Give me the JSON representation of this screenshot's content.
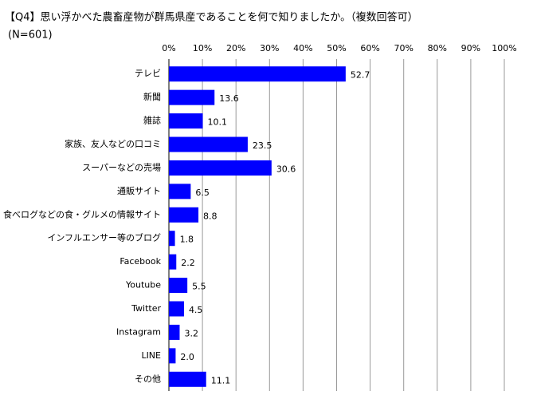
{
  "chart_data": {
    "type": "bar",
    "orientation": "horizontal",
    "title": "【Q4】思い浮かべた農畜産物が群馬県産であることを何で知りましたか。（複数回答可）",
    "subtitle": "(N=601)",
    "categories": [
      "テレビ",
      "新聞",
      "雑誌",
      "家族、友人などの口コミ",
      "スーパーなどの売場",
      "通販サイト",
      "食べログなどの食・グルメの情報サイト",
      "インフルエンサー等のブログ",
      "Facebook",
      "Youtube",
      "Twitter",
      "Instagram",
      "LINE",
      "その他"
    ],
    "values": [
      52.7,
      13.6,
      10.1,
      23.5,
      30.6,
      6.5,
      8.8,
      1.8,
      2.2,
      5.5,
      4.5,
      3.2,
      2.0,
      11.1
    ],
    "value_labels": [
      "52.7",
      "13.6",
      "10.1",
      "23.5",
      "30.6",
      "6.5",
      "8.8",
      "1.8",
      "2.2",
      "5.5",
      "4.5",
      "3.2",
      "2.0",
      "11.1"
    ],
    "color": "#0000ff",
    "xlim": [
      0,
      100
    ],
    "xticks": [
      {
        "value": 0,
        "label": "0%"
      },
      {
        "value": 10,
        "label": "10%"
      },
      {
        "value": 20,
        "label": "20%"
      },
      {
        "value": 30,
        "label": "30%"
      },
      {
        "value": 40,
        "label": "40%"
      },
      {
        "value": 50,
        "label": "50%"
      },
      {
        "value": 60,
        "label": "60%"
      },
      {
        "value": 70,
        "label": "70%"
      },
      {
        "value": 80,
        "label": "80%"
      },
      {
        "value": 90,
        "label": "90%"
      },
      {
        "value": 100,
        "label": "100%"
      }
    ],
    "grid": true
  }
}
